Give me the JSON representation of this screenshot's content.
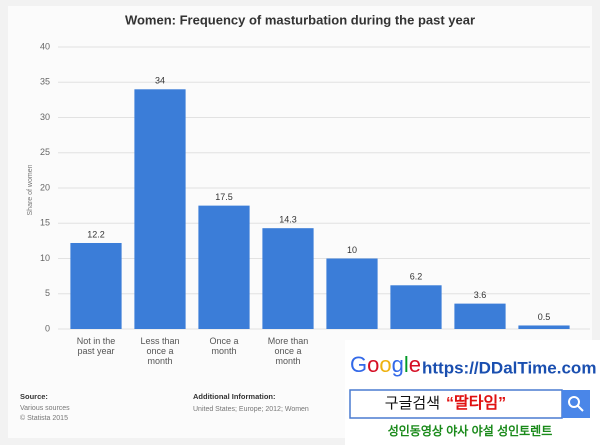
{
  "chart_data": {
    "type": "bar",
    "title": "Women: Frequency of masturbation during the past year",
    "y_label": "Share of women",
    "categories": [
      "Not in the past year",
      "Less than once a month",
      "Once a month",
      "More than once a month",
      null,
      null,
      null,
      null
    ],
    "values": [
      12.2,
      34,
      17.5,
      14.3,
      10,
      6.2,
      3.6,
      0.5
    ],
    "color": "#3b7dd8",
    "ylim": [
      0,
      40
    ],
    "yticks": [
      0,
      5,
      10,
      15,
      20,
      25,
      30,
      35,
      40
    ],
    "grid": true
  },
  "footer": {
    "source_title": "Source:",
    "source": "Various sources",
    "copyright": "© Statista 2015",
    "info_title": "Additional Information:",
    "info": "United States; Europe; 2012; Women"
  },
  "ad": {
    "logo": "Google",
    "url": "https://DDalTime.com",
    "search_prefix": "구글검색",
    "search_term": "“딸타임”",
    "tagline": "성인동영상 야사 야설 성인토렌트"
  }
}
